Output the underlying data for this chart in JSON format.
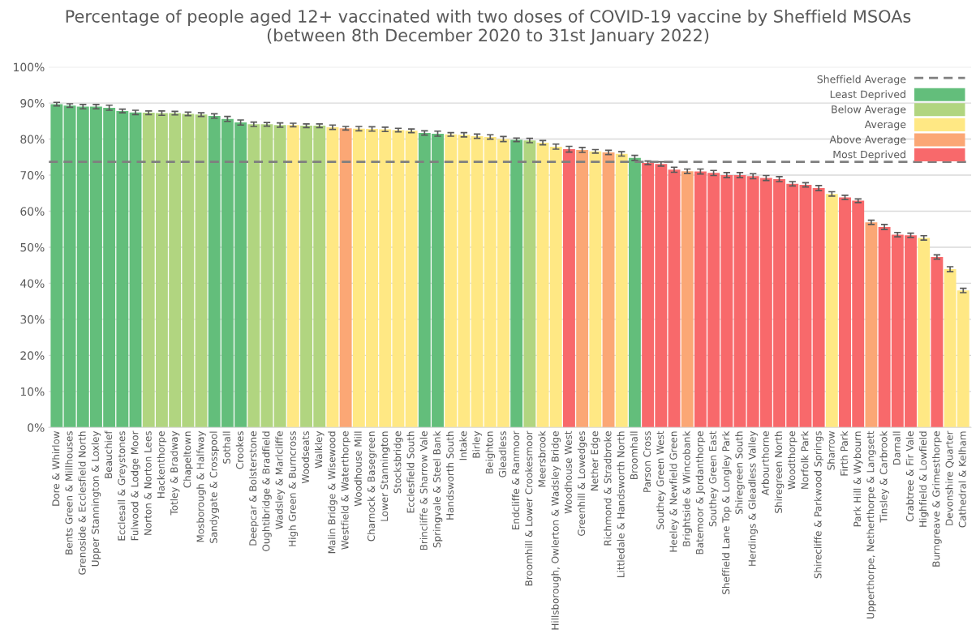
{
  "chart_data": {
    "type": "bar",
    "title": "Percentage of people aged 12+ vaccinated with two doses of COVID-19 vaccine by Sheffield MSOAs\n(between 8th December 2020 to 31st January 2022)",
    "categories": [
      "Dore & Whirlow",
      "Bents Green & Millhouses",
      "Grenoside & Ecclesfield North",
      "Upper Stannington & Loxley",
      "Beauchief",
      "Ecclesall & Greystones",
      "Fulwood & Lodge Moor",
      "Norton & Norton Lees",
      "Hackenthorpe",
      "Totley & Bradway",
      "Chapeltown",
      "Mosborough & Halfway",
      "Sandygate & Crosspool",
      "Sothall",
      "Crookes",
      "Deepcar & Bolsterstone",
      "Oughtibridge & Bradfield",
      "Wadsley & Marlcliffe",
      "High Green & Burncross",
      "Woodseats",
      "Walkley",
      "Malin Bridge & Wisewood",
      "Westfield & Waterthorpe",
      "Woodhouse Mill",
      "Charnock & Basegreen",
      "Lower Stannington",
      "Stocksbridge",
      "Ecclesfield South",
      "Brincliffe & Sharrow Vale",
      "Springvale & Steel Bank",
      "Handsworth South",
      "Intake",
      "Birley",
      "Beighton",
      "Gleadless",
      "Endcliffe & Ranmoor",
      "Broomhill & Lower Crookesmoor",
      "Meersbrook",
      "Hillsborough, Owlerton & Wadsley Bridge",
      "Woodhouse West",
      "Greenhill & Lowedges",
      "Nether Edge",
      "Richmond & Stradbroke",
      "Littledale & Handsworth North",
      "Broomhall",
      "Parson Cross",
      "Southey Green West",
      "Heeley & Newfield Green",
      "Brightside & Wincobank",
      "Batemoor & Jordanthorpe",
      "Southey Green East",
      "Sheffield Lane Top & Longley Park",
      "Shiregreen South",
      "Herdings & Gleadless Valley",
      "Arbourthorne",
      "Shiregreen North",
      "Woodthorpe",
      "Norfolk Park",
      "Shirecliffe & Parkwood Springs",
      "Sharrow",
      "Firth Park",
      "Park Hill & Wybourn",
      "Upperthorpe, Netherthorpe & Langsett",
      "Tinsley & Carbrook",
      "Darnall",
      "Crabtree & Fir Vale",
      "Highfield & Lowfield",
      "Burngreave & Grimesthorpe",
      "Devonshire Quarter",
      "Cathedral & Kelham"
    ],
    "series": [
      {
        "name": "Least Deprived",
        "color": "#63be7b",
        "values": [
          89.7,
          89.3,
          89.0,
          89.0,
          88.7,
          87.8,
          87.4,
          null,
          null,
          null,
          null,
          null,
          86.4,
          85.6,
          84.6,
          null,
          null,
          null,
          null,
          null,
          null,
          null,
          null,
          null,
          null,
          null,
          null,
          null,
          81.7,
          81.5,
          null,
          null,
          null,
          null,
          null,
          79.8,
          null,
          null,
          null,
          null,
          null,
          null,
          null,
          null,
          74.8,
          null,
          null,
          null,
          null,
          null,
          null,
          null,
          null,
          null,
          null,
          null,
          null,
          null,
          null,
          null,
          null,
          null,
          null,
          null,
          null,
          null,
          null,
          null,
          null,
          null
        ],
        "errors": [
          0.5,
          0.5,
          0.6,
          0.6,
          0.7,
          0.5,
          0.6,
          null,
          null,
          null,
          null,
          null,
          0.6,
          0.7,
          0.7,
          null,
          null,
          null,
          null,
          null,
          null,
          null,
          null,
          null,
          null,
          null,
          null,
          null,
          0.6,
          0.7,
          null,
          null,
          null,
          null,
          null,
          0.5,
          null,
          null,
          null,
          null,
          null,
          null,
          null,
          null,
          0.7,
          null,
          null,
          null,
          null,
          null,
          null,
          null,
          null,
          null,
          null,
          null,
          null,
          null,
          null,
          null,
          null,
          null,
          null,
          null,
          null,
          null,
          null,
          null,
          null,
          null
        ]
      },
      {
        "name": "Below Average",
        "color": "#b1d580",
        "values": [
          null,
          null,
          null,
          null,
          null,
          null,
          null,
          87.3,
          87.2,
          87.2,
          87.0,
          86.8,
          null,
          null,
          null,
          84.1,
          84.1,
          83.9,
          null,
          83.7,
          83.7,
          null,
          null,
          null,
          null,
          null,
          null,
          null,
          null,
          null,
          null,
          null,
          null,
          null,
          null,
          null,
          79.6,
          null,
          null,
          null,
          null,
          null,
          null,
          null,
          null,
          null,
          null,
          null,
          null,
          null,
          null,
          null,
          null,
          null,
          null,
          null,
          null,
          null,
          null,
          null,
          null,
          null,
          null,
          null,
          null,
          null,
          null,
          null,
          null,
          null
        ],
        "errors": [
          null,
          null,
          null,
          null,
          null,
          null,
          null,
          0.5,
          0.6,
          0.5,
          0.5,
          0.5,
          null,
          null,
          null,
          0.6,
          0.5,
          0.6,
          null,
          0.5,
          0.5,
          null,
          null,
          null,
          null,
          null,
          null,
          null,
          null,
          null,
          null,
          null,
          null,
          null,
          null,
          null,
          0.6,
          null,
          null,
          null,
          null,
          null,
          null,
          null,
          null,
          null,
          null,
          null,
          null,
          null,
          null,
          null,
          null,
          null,
          null,
          null,
          null,
          null,
          null,
          null,
          null,
          null,
          null,
          null,
          null,
          null,
          null,
          null,
          null,
          null
        ]
      },
      {
        "name": "Average",
        "color": "#ffe884",
        "values": [
          null,
          null,
          null,
          null,
          null,
          null,
          null,
          null,
          null,
          null,
          null,
          null,
          null,
          null,
          null,
          null,
          null,
          null,
          83.9,
          null,
          null,
          83.3,
          null,
          82.9,
          82.8,
          82.7,
          82.5,
          82.3,
          null,
          null,
          81.3,
          81.2,
          80.8,
          80.6,
          80.0,
          null,
          null,
          79.0,
          77.9,
          null,
          null,
          76.6,
          null,
          75.9,
          null,
          null,
          null,
          null,
          null,
          null,
          null,
          null,
          null,
          null,
          null,
          null,
          null,
          null,
          null,
          64.8,
          null,
          null,
          null,
          null,
          null,
          null,
          52.6,
          null,
          43.9,
          38.0
        ],
        "errors": [
          null,
          null,
          null,
          null,
          null,
          null,
          null,
          null,
          null,
          null,
          null,
          null,
          null,
          null,
          null,
          null,
          null,
          null,
          0.5,
          null,
          null,
          0.6,
          null,
          0.6,
          0.6,
          0.6,
          0.5,
          0.5,
          null,
          null,
          0.5,
          0.6,
          0.6,
          0.6,
          0.7,
          null,
          null,
          0.6,
          0.7,
          null,
          null,
          0.5,
          null,
          0.6,
          null,
          null,
          null,
          null,
          null,
          null,
          null,
          null,
          null,
          null,
          null,
          null,
          null,
          null,
          null,
          0.6,
          null,
          null,
          null,
          null,
          null,
          null,
          0.6,
          null,
          0.7,
          0.6
        ]
      },
      {
        "name": "Above Average",
        "color": "#fba775",
        "values": [
          null,
          null,
          null,
          null,
          null,
          null,
          null,
          null,
          null,
          null,
          null,
          null,
          null,
          null,
          null,
          null,
          null,
          null,
          null,
          null,
          null,
          null,
          83.0,
          null,
          null,
          null,
          null,
          null,
          null,
          null,
          null,
          null,
          null,
          null,
          null,
          null,
          null,
          null,
          null,
          null,
          77.0,
          null,
          76.3,
          null,
          null,
          null,
          null,
          null,
          71.1,
          null,
          null,
          null,
          null,
          null,
          null,
          null,
          null,
          null,
          null,
          null,
          null,
          null,
          56.9,
          null,
          null,
          null,
          null,
          null,
          null,
          null
        ],
        "errors": [
          null,
          null,
          null,
          null,
          null,
          null,
          null,
          null,
          null,
          null,
          null,
          null,
          null,
          null,
          null,
          null,
          null,
          null,
          null,
          null,
          null,
          null,
          0.5,
          null,
          null,
          null,
          null,
          null,
          null,
          null,
          null,
          null,
          null,
          null,
          null,
          null,
          null,
          null,
          null,
          null,
          0.7,
          null,
          0.6,
          null,
          null,
          null,
          null,
          null,
          0.6,
          null,
          null,
          null,
          null,
          null,
          null,
          null,
          null,
          null,
          null,
          null,
          null,
          null,
          0.6,
          null,
          null,
          null,
          null,
          null,
          null,
          null
        ]
      },
      {
        "name": "Most Deprived",
        "color": "#f8696b",
        "values": [
          null,
          null,
          null,
          null,
          null,
          null,
          null,
          null,
          null,
          null,
          null,
          null,
          null,
          null,
          null,
          null,
          null,
          null,
          null,
          null,
          null,
          null,
          null,
          null,
          null,
          null,
          null,
          null,
          null,
          null,
          null,
          null,
          null,
          null,
          null,
          null,
          null,
          null,
          null,
          77.2,
          null,
          null,
          null,
          null,
          null,
          73.4,
          73.1,
          71.5,
          null,
          71.0,
          70.6,
          70.0,
          70.0,
          69.7,
          69.2,
          68.9,
          67.6,
          67.3,
          66.4,
          null,
          63.8,
          62.9,
          null,
          55.6,
          53.5,
          53.3,
          null,
          47.3,
          null,
          null
        ],
        "errors": [
          null,
          null,
          null,
          null,
          null,
          null,
          null,
          null,
          null,
          null,
          null,
          null,
          null,
          null,
          null,
          null,
          null,
          null,
          null,
          null,
          null,
          null,
          null,
          null,
          null,
          null,
          null,
          null,
          null,
          null,
          null,
          null,
          null,
          null,
          null,
          null,
          null,
          null,
          null,
          0.8,
          null,
          null,
          null,
          null,
          null,
          0.5,
          0.6,
          0.7,
          null,
          0.7,
          0.7,
          0.7,
          0.7,
          0.7,
          0.7,
          0.7,
          0.6,
          0.6,
          0.7,
          null,
          0.6,
          0.5,
          null,
          0.7,
          0.6,
          0.6,
          null,
          0.6,
          null,
          null
        ]
      }
    ],
    "ylim": [
      0,
      100
    ],
    "yticks": [
      {
        "value": 0,
        "label": "0%"
      },
      {
        "value": 10,
        "label": "10%"
      },
      {
        "value": 20,
        "label": "20%"
      },
      {
        "value": 30,
        "label": "30%"
      },
      {
        "value": 40,
        "label": "40%"
      },
      {
        "value": 50,
        "label": "50%"
      },
      {
        "value": 60,
        "label": "60%"
      },
      {
        "value": 70,
        "label": "70%"
      },
      {
        "value": 80,
        "label": "80%"
      },
      {
        "value": 90,
        "label": "90%"
      },
      {
        "value": 100,
        "label": "100%"
      }
    ],
    "ref_lines": [
      {
        "axis": "y",
        "value": 73.7,
        "label": "Sheffield Average",
        "color": "#7f7f7f",
        "line_style": "dashed"
      }
    ],
    "grid": "y",
    "legend": "top right"
  }
}
